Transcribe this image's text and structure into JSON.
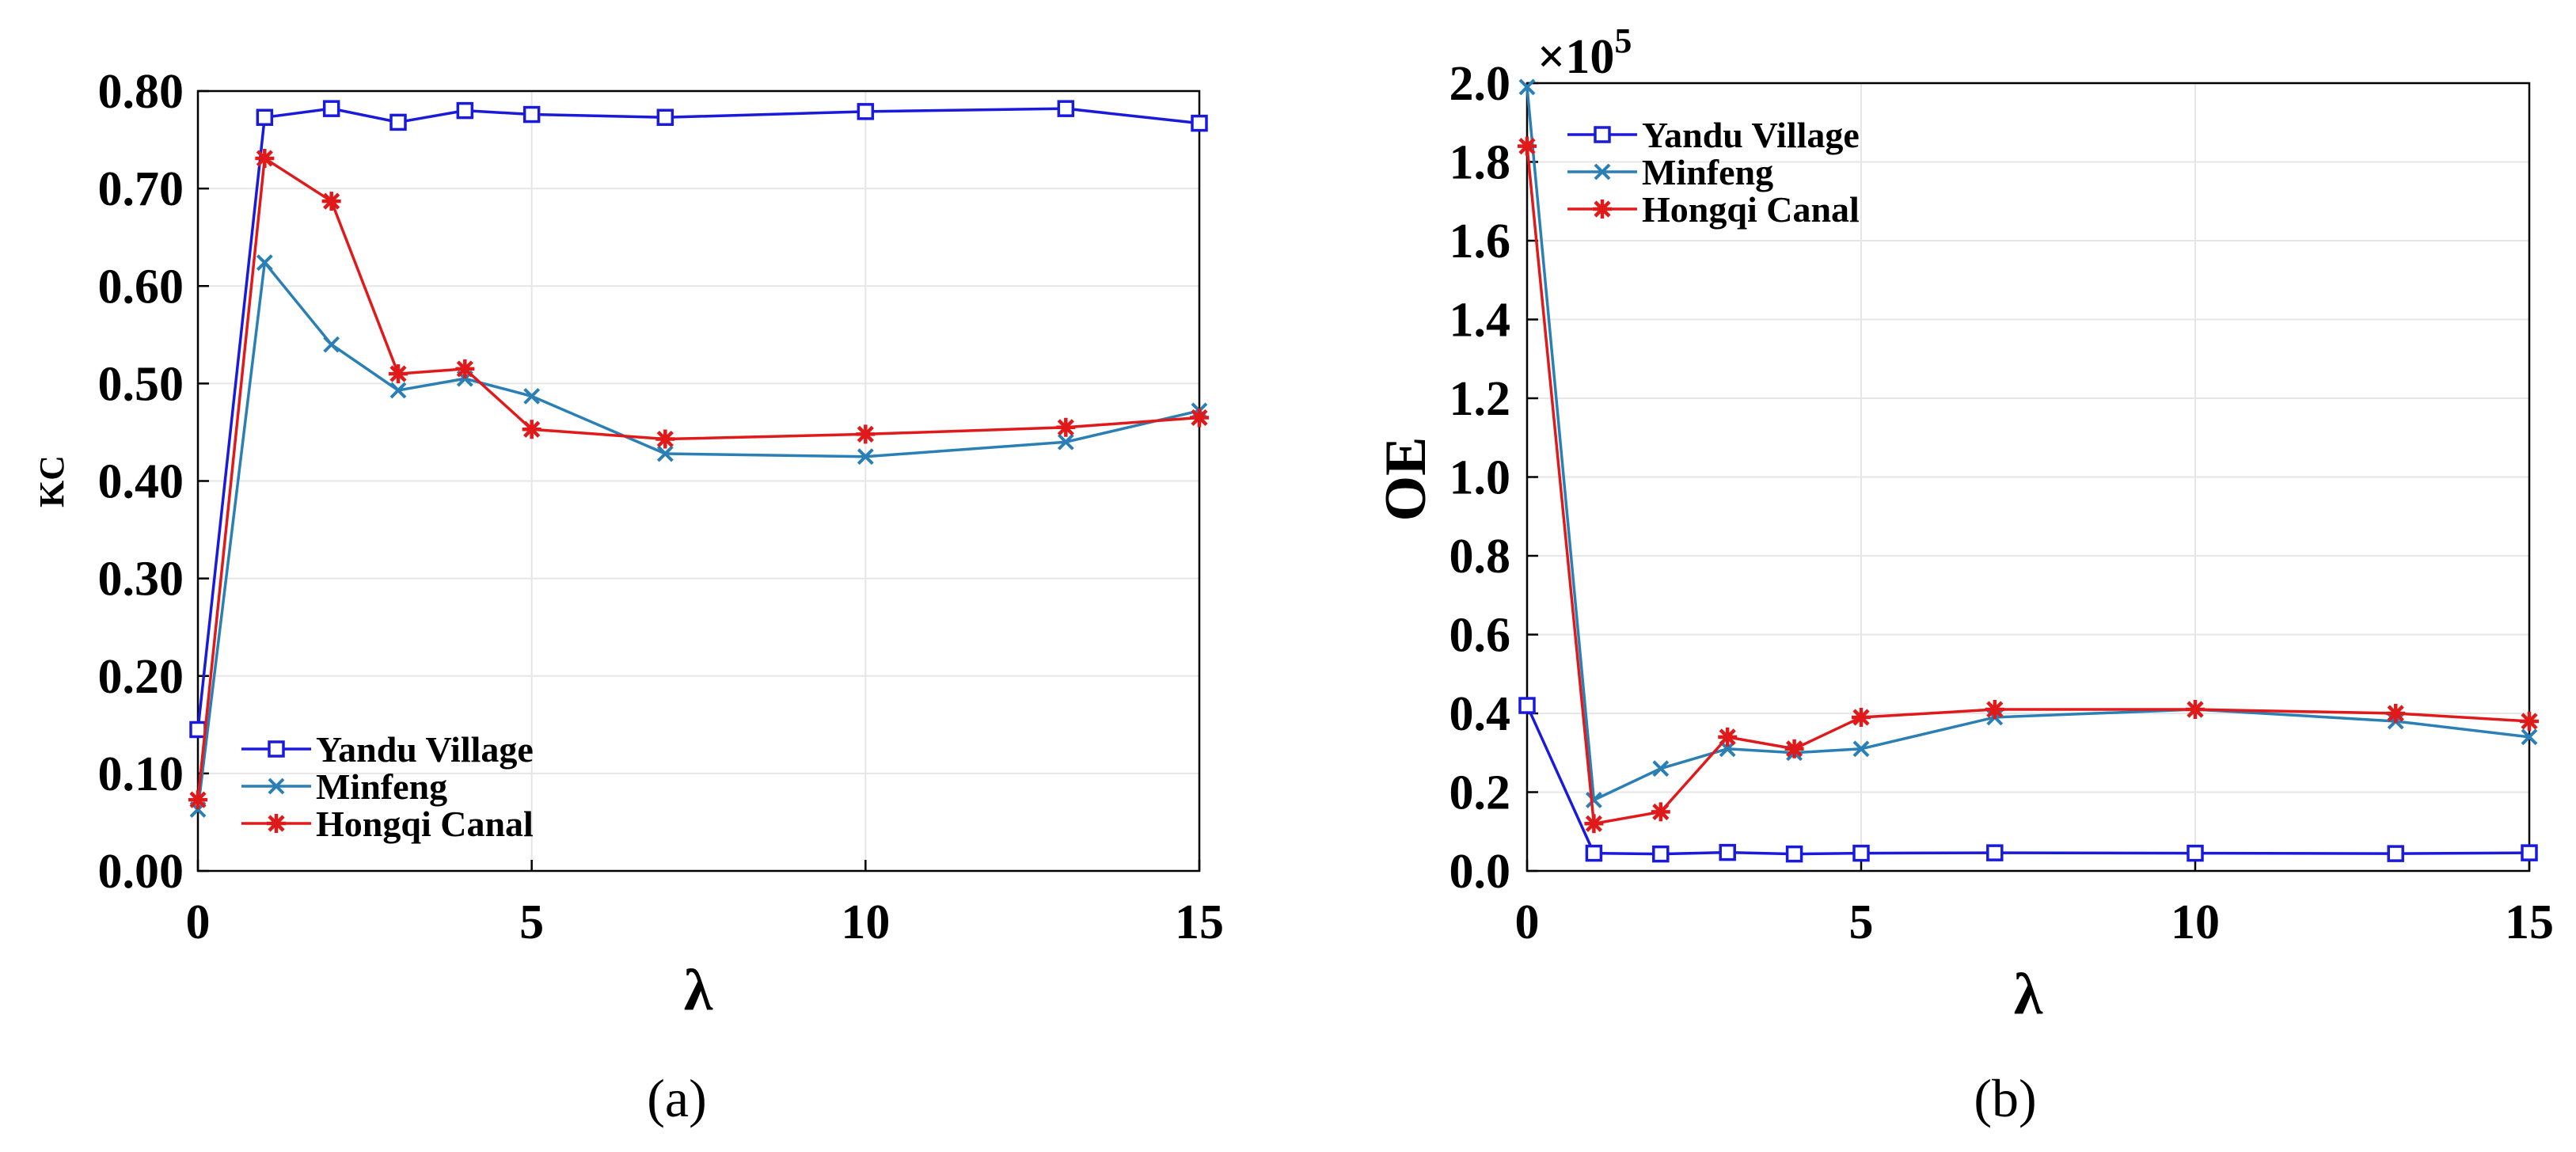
{
  "chart_data": [
    {
      "type": "line",
      "panel_label": "(a)",
      "xlabel": "λ",
      "ylabel": "KC",
      "xlim": [
        0,
        15
      ],
      "ylim": [
        0,
        0.8
      ],
      "x_ticks": [
        "0",
        "5",
        "10",
        "15"
      ],
      "y_ticks": [
        "0.00",
        "0.10",
        "0.20",
        "0.30",
        "0.40",
        "0.50",
        "0.60",
        "0.70",
        "0.80"
      ],
      "legend_position": "bottom-left",
      "x": [
        0,
        1,
        2,
        3,
        4,
        5,
        7,
        10,
        13,
        15
      ],
      "series": [
        {
          "name": "Yandu Village",
          "color": "#1a1adb",
          "marker": "square",
          "values": [
            0.145,
            0.773,
            0.782,
            0.768,
            0.78,
            0.776,
            0.773,
            0.779,
            0.782,
            0.767
          ]
        },
        {
          "name": "Minfeng",
          "color": "#2a7fb5",
          "marker": "x",
          "values": [
            0.063,
            0.624,
            0.54,
            0.493,
            0.505,
            0.487,
            0.428,
            0.425,
            0.44,
            0.472
          ]
        },
        {
          "name": "Hongqi Canal",
          "color": "#e01a1a",
          "marker": "star",
          "values": [
            0.073,
            0.731,
            0.687,
            0.51,
            0.515,
            0.453,
            0.443,
            0.448,
            0.455,
            0.465
          ]
        }
      ]
    },
    {
      "type": "line",
      "panel_label": "(b)",
      "xlabel": "λ",
      "ylabel": "OE",
      "multiplier": "×10",
      "multiplier_exp": "5",
      "xlim": [
        0,
        15
      ],
      "ylim": [
        0,
        2.0
      ],
      "x_ticks": [
        "0",
        "5",
        "10",
        "15"
      ],
      "y_ticks": [
        "0.0",
        "0.2",
        "0.4",
        "0.6",
        "0.8",
        "1.0",
        "1.2",
        "1.4",
        "1.6",
        "1.8",
        "2.0"
      ],
      "legend_position": "top-left",
      "x": [
        0,
        1,
        2,
        3,
        4,
        5,
        7,
        10,
        13,
        15
      ],
      "series": [
        {
          "name": "Yandu Village",
          "color": "#1a1adb",
          "marker": "square",
          "values": [
            0.42,
            0.045,
            0.043,
            0.047,
            0.043,
            0.045,
            0.046,
            0.045,
            0.044,
            0.046
          ]
        },
        {
          "name": "Minfeng",
          "color": "#2a7fb5",
          "marker": "x",
          "values": [
            1.99,
            0.18,
            0.26,
            0.31,
            0.3,
            0.31,
            0.39,
            0.41,
            0.38,
            0.34
          ]
        },
        {
          "name": "Hongqi Canal",
          "color": "#e01a1a",
          "marker": "star",
          "values": [
            1.84,
            0.12,
            0.15,
            0.34,
            0.31,
            0.39,
            0.41,
            0.41,
            0.4,
            0.38
          ]
        }
      ]
    }
  ]
}
